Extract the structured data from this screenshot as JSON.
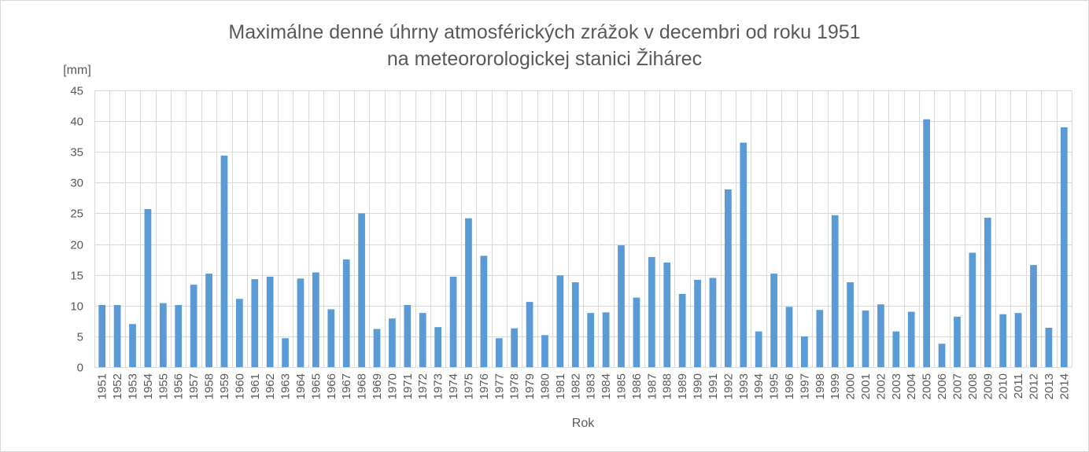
{
  "chart_data": {
    "type": "bar",
    "title_line1": "Maximálne denné úhrny atmosférických zrážok v decembri od roku 1951",
    "title_line2": "na meteororologickej stanici Žihárec",
    "ylabel": "[mm]",
    "xlabel": "Rok",
    "ylim": [
      0,
      45
    ],
    "y_ticks": [
      0,
      5,
      10,
      15,
      20,
      25,
      30,
      35,
      40,
      45
    ],
    "grid": true,
    "bar_color": "#5b9bd5",
    "categories": [
      "1951",
      "1952",
      "1953",
      "1954",
      "1955",
      "1956",
      "1957",
      "1958",
      "1959",
      "1960",
      "1961",
      "1962",
      "1963",
      "1964",
      "1965",
      "1966",
      "1967",
      "1968",
      "1969",
      "1970",
      "1971",
      "1972",
      "1973",
      "1974",
      "1975",
      "1976",
      "1977",
      "1978",
      "1979",
      "1980",
      "1981",
      "1982",
      "1983",
      "1984",
      "1985",
      "1986",
      "1987",
      "1988",
      "1989",
      "1990",
      "1991",
      "1992",
      "1993",
      "1994",
      "1995",
      "1996",
      "1997",
      "1998",
      "1999",
      "2000",
      "2001",
      "2002",
      "2003",
      "2004",
      "2005",
      "2006",
      "2007",
      "2008",
      "2009",
      "2010",
      "2011",
      "2012",
      "2013",
      "2014"
    ],
    "values": [
      10.1,
      10.1,
      7.0,
      25.7,
      10.4,
      10.1,
      13.4,
      15.2,
      34.4,
      11.1,
      14.3,
      14.7,
      4.7,
      14.4,
      15.4,
      9.4,
      17.5,
      25.0,
      6.2,
      7.9,
      10.1,
      8.8,
      6.5,
      14.7,
      24.2,
      18.1,
      4.7,
      6.3,
      10.6,
      5.2,
      14.9,
      13.8,
      8.8,
      8.9,
      19.8,
      11.3,
      17.9,
      17.0,
      11.9,
      14.2,
      14.5,
      28.9,
      36.5,
      5.8,
      15.2,
      9.8,
      5.0,
      9.3,
      24.7,
      13.8,
      9.2,
      10.2,
      5.8,
      9.0,
      40.3,
      3.8,
      8.2,
      18.6,
      24.3,
      8.6,
      8.8,
      16.6,
      6.4,
      39.0
    ]
  }
}
